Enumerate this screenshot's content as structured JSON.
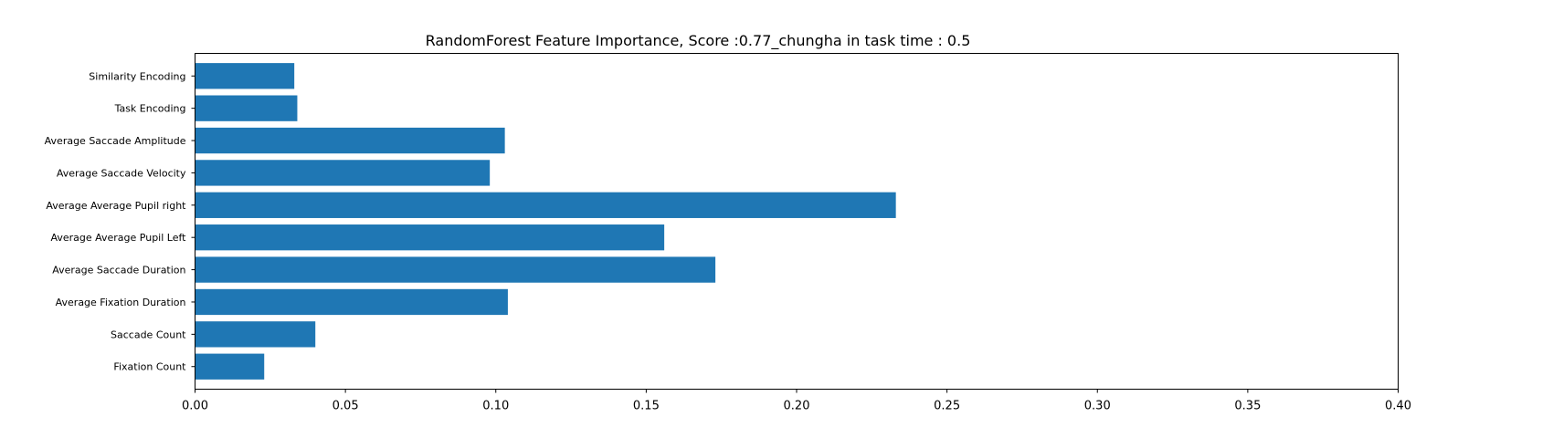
{
  "chart_data": {
    "type": "bar",
    "orientation": "horizontal",
    "title": "RandomForest Feature Importance, Score :0.77_chungha in task time : 0.5",
    "xlabel": "",
    "ylabel": "",
    "xlim": [
      0,
      0.4
    ],
    "xticks": [
      "0.00",
      "0.05",
      "0.10",
      "0.15",
      "0.20",
      "0.25",
      "0.30",
      "0.35",
      "0.40"
    ],
    "categories": [
      "Fixation Count",
      "Saccade Count",
      "Average Fixation Duration",
      "Average Saccade Duration",
      "Average Average Pupil Left",
      "Average Average Pupil right",
      "Average Saccade Velocity",
      "Average Saccade Amplitude",
      "Task Encoding",
      "Similarity Encoding"
    ],
    "values": [
      0.023,
      0.04,
      0.104,
      0.173,
      0.156,
      0.233,
      0.098,
      0.103,
      0.034,
      0.033
    ],
    "bar_color": "#1f77b4",
    "grid": false,
    "legend": "none"
  }
}
